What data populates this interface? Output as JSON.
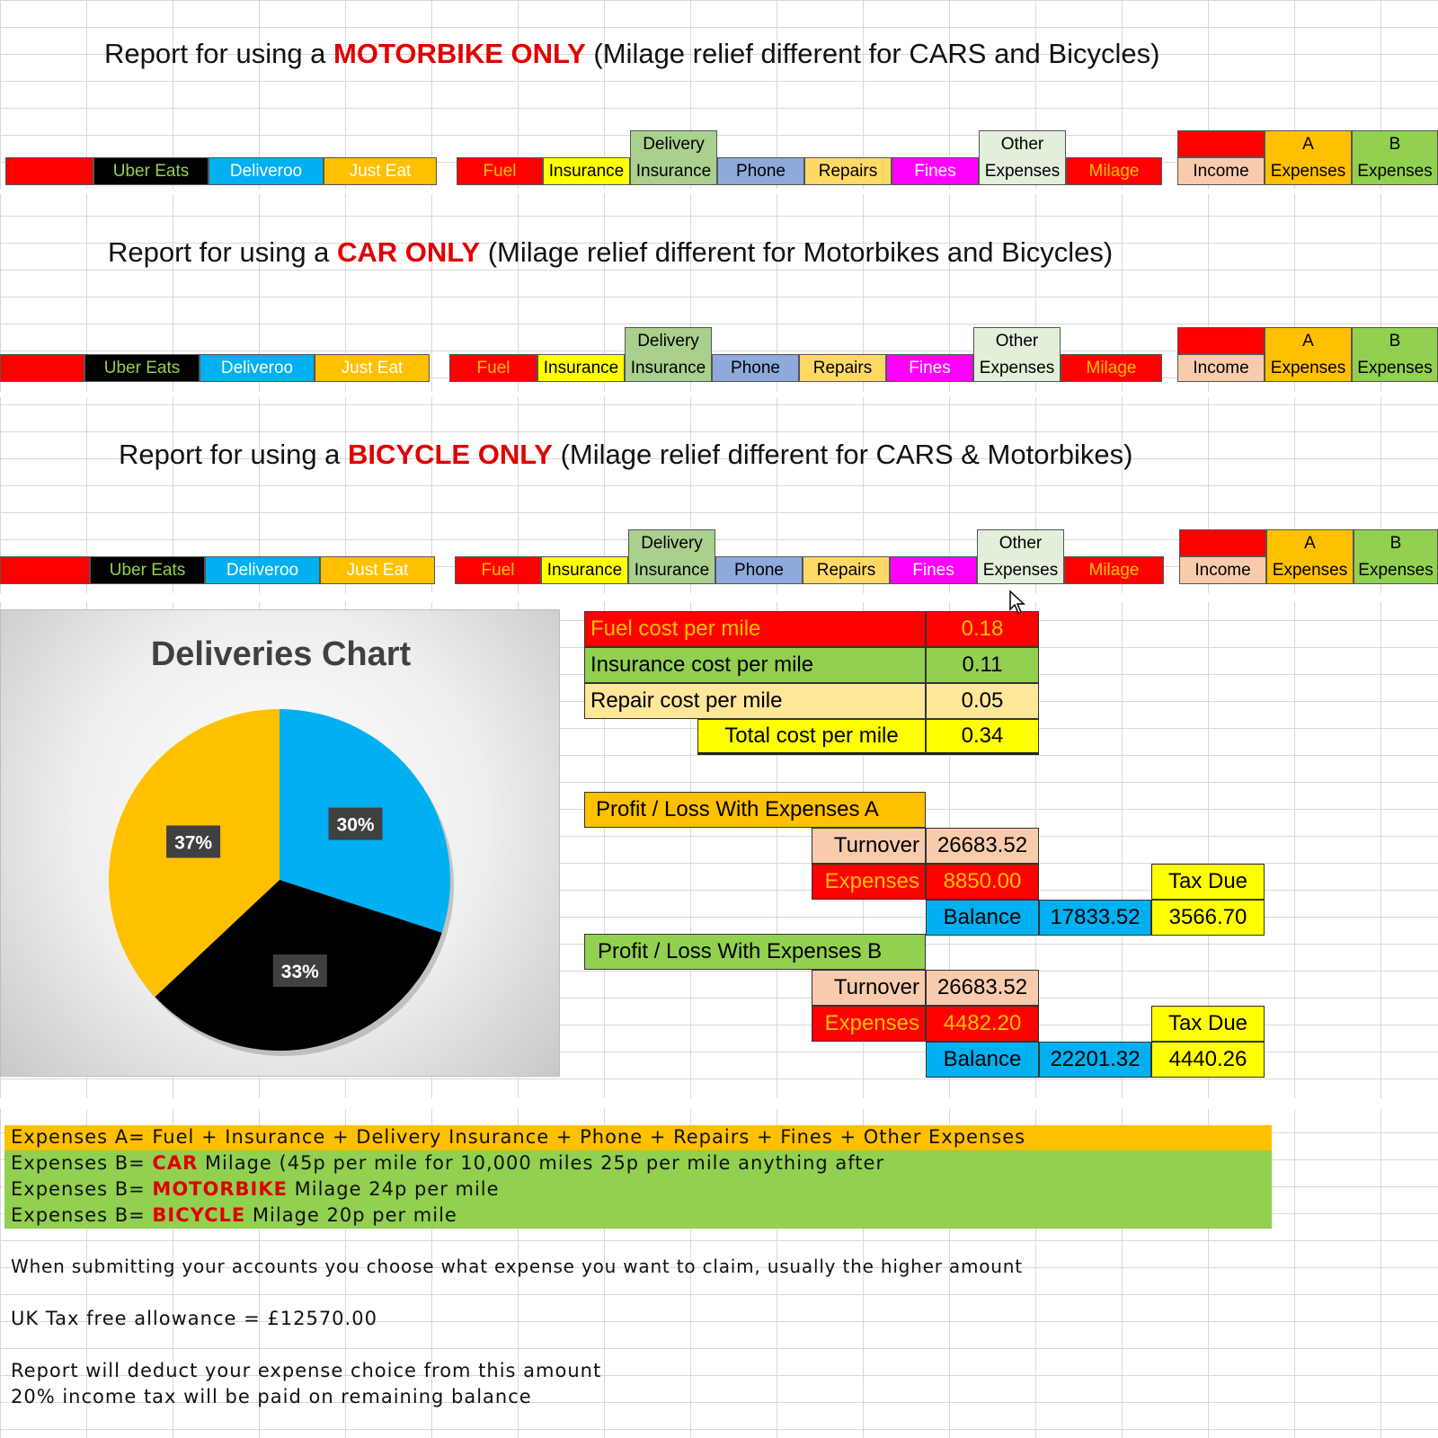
{
  "sections": [
    {
      "title_prefix": "Report for using a ",
      "title_highlight": "MOTORBIKE ONLY",
      "title_suffix": " (Milage relief different for CARS and Bicycles)"
    },
    {
      "title_prefix": "Report for using a ",
      "title_highlight": "CAR ONLY",
      "title_suffix": " (Milage relief different for Motorbikes and Bicycles)"
    },
    {
      "title_prefix": "Report for using a ",
      "title_highlight": "BICYCLE ONLY",
      "title_suffix": " (Milage relief different for CARS & Motorbikes)"
    }
  ],
  "headers": {
    "uber_eats": "Uber Eats",
    "deliveroo": "Deliveroo",
    "just_eat": "Just Eat",
    "fuel": "Fuel",
    "insurance": "Insurance",
    "delivery_insurance_top": "Delivery",
    "delivery_insurance_bottom": "Insurance",
    "phone": "Phone",
    "repairs": "Repairs",
    "fines": "Fines",
    "other_expenses_top": "Other",
    "other_expenses_bottom": "Expenses",
    "milage": "Milage",
    "income": "Income",
    "a_expenses_top": "A",
    "a_expenses_bottom": "Expenses",
    "b_expenses_top": "B",
    "b_expenses_bottom": "Expenses"
  },
  "colors": {
    "red": "#ff0000",
    "black": "#000000",
    "blue": "#00b0f0",
    "orange": "#ffc000",
    "yellow": "#ffff00",
    "sage": "#a9d08e",
    "periwinkle": "#8ea9db",
    "tan": "#ffd966",
    "magenta": "#ff00ff",
    "lightgreen": "#e2efda",
    "peach": "#f8cbad",
    "green": "#92d050"
  },
  "chart_data": {
    "type": "pie",
    "title": "Deliveries Chart",
    "slices": [
      {
        "label": "30%",
        "value": 30,
        "color": "#00b0f0"
      },
      {
        "label": "33%",
        "value": 33,
        "color": "#000000"
      },
      {
        "label": "37%",
        "value": 37,
        "color": "#ffc000"
      }
    ]
  },
  "cost_table": {
    "fuel_label": "Fuel cost per mile",
    "fuel_value": "0.18",
    "insurance_label": "Insurance cost per mile",
    "insurance_value": "0.11",
    "repair_label": "Repair cost per mile",
    "repair_value": "0.05",
    "total_label": "Total cost per mile",
    "total_value": "0.34"
  },
  "profit_a": {
    "heading": "Profit / Loss With Expenses A",
    "turnover_label": "Turnover",
    "turnover_value": "26683.52",
    "expenses_label": "Expenses",
    "expenses_value": "8850.00",
    "tax_label": "Tax Due",
    "balance_label": "Balance",
    "balance_value": "17833.52",
    "tax_value": "3566.70"
  },
  "profit_b": {
    "heading": "Profit / Loss With Expenses B",
    "turnover_label": "Turnover",
    "turnover_value": "26683.52",
    "expenses_label": "Expenses",
    "expenses_value": "4482.20",
    "tax_label": "Tax Due",
    "balance_label": "Balance",
    "balance_value": "22201.32",
    "tax_value": "4440.26"
  },
  "notes": {
    "expenses_a": "Expenses A= Fuel + Insurance + Delivery Insurance + Phone + Repairs + Fines + Other Expenses",
    "b_prefix": "Expenses B= ",
    "car": "CAR",
    "car_rest": " Milage (45p per mile for 10,000 miles 25p per mile anything after",
    "motorbike": "MOTORBIKE",
    "motorbike_rest": " Milage 24p per mile",
    "bicycle": "BICYCLE",
    "bicycle_rest": " Milage 20p per mile",
    "submitting": "When submitting your accounts you choose what expense you want to claim, usually the higher amount",
    "allowance": "UK Tax free allowance = £12570.00",
    "deduct": "Report will deduct your expense choice from this amount",
    "income_tax": "20% income tax will be paid on remaining balance"
  }
}
